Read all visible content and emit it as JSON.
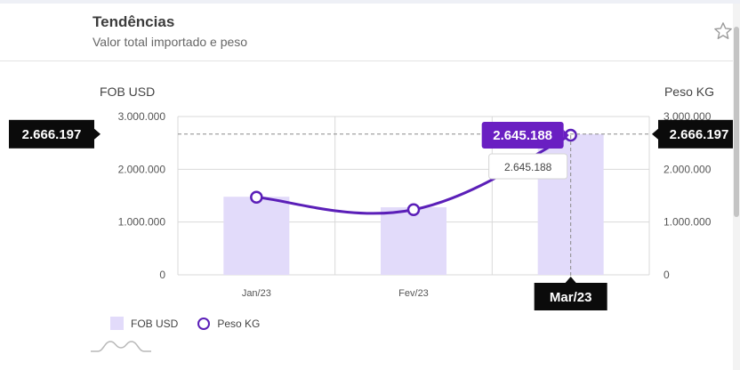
{
  "header": {
    "title": "Tendências",
    "subtitle": "Valor total importado e peso"
  },
  "chart_data": {
    "type": "bar",
    "categories": [
      "Jan/23",
      "Fev/23",
      "Mar/23"
    ],
    "series": [
      {
        "name": "FOB USD",
        "type": "bar",
        "axis": "left",
        "values": [
          1480000,
          1280000,
          2666197
        ],
        "color": "#e2dbfa"
      },
      {
        "name": "Peso KG",
        "type": "line",
        "axis": "right",
        "values": [
          1470000,
          1235000,
          2645188
        ],
        "color": "#5b1fb8"
      }
    ],
    "y_left": {
      "label": "FOB USD",
      "ticks": [
        "0",
        "1.000.000",
        "2.000.000",
        "3.000.000"
      ],
      "range": [
        0,
        3000000
      ]
    },
    "y_right": {
      "label": "Peso KG",
      "ticks": [
        "0",
        "1.000.000",
        "2.000.000",
        "3.000.000"
      ],
      "range": [
        0,
        3000000
      ]
    },
    "grid": true,
    "legend_position": "bottom-left",
    "crosshair": {
      "category": "Mar/23",
      "left_value_label": "2.666.197",
      "right_value_label": "2.666.197",
      "point_label": "2.645.188",
      "tooltip_value": "2.645.188"
    }
  },
  "legend": [
    {
      "label": "FOB USD",
      "kind": "bar"
    },
    {
      "label": "Peso KG",
      "kind": "line"
    }
  ],
  "colors": {
    "bar": "#e2dbfa",
    "line": "#5b1fb8",
    "badge_dark": "#0b0b0b",
    "badge_purple": "#6a1fc2"
  },
  "icons": {
    "favorite": "star-icon",
    "range_selector": "mini-chart-icon"
  }
}
